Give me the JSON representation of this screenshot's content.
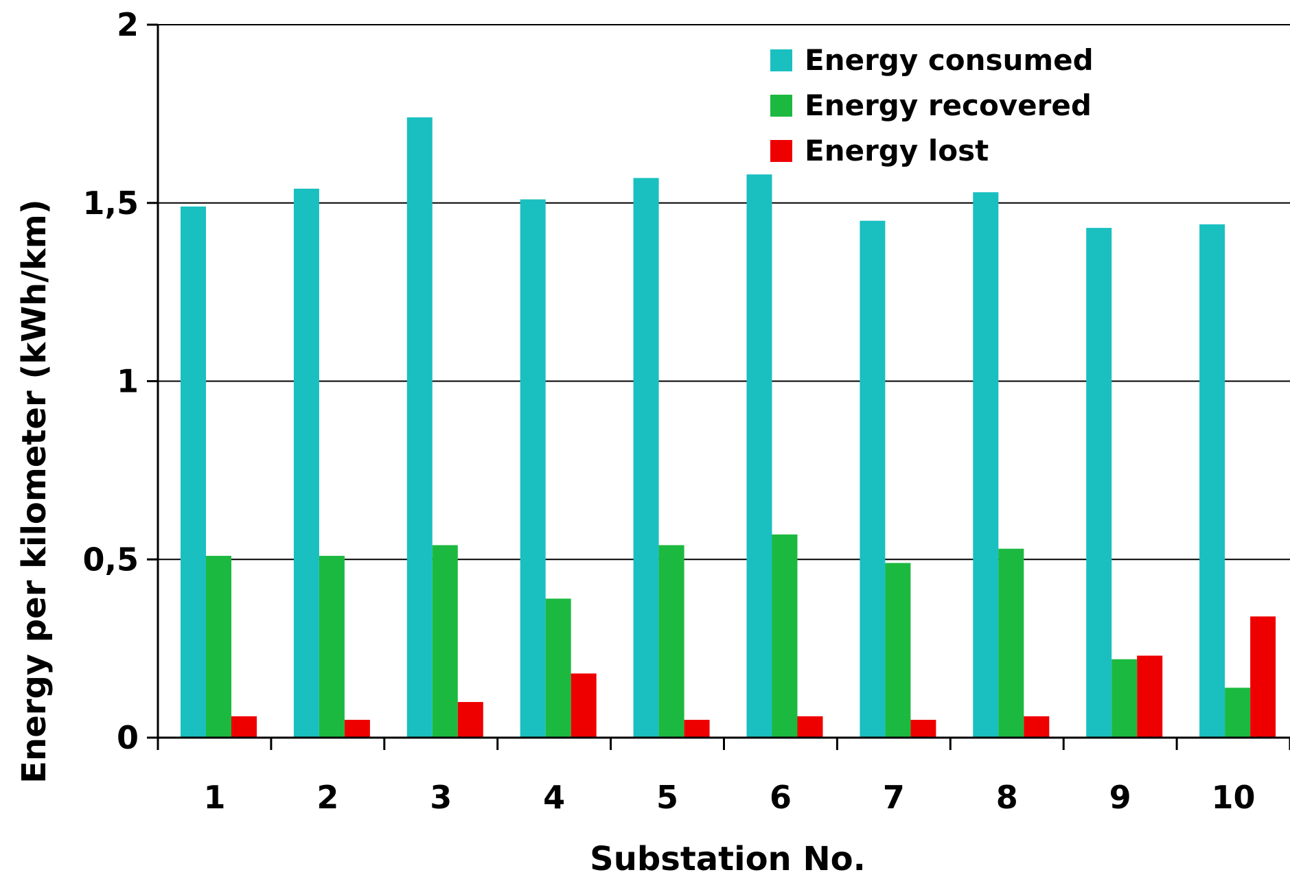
{
  "chart_data": {
    "type": "bar",
    "title": "",
    "xlabel": "Substation No.",
    "ylabel": "Energy per kilometer (kWh/km)",
    "categories": [
      "1",
      "2",
      "3",
      "4",
      "5",
      "6",
      "7",
      "8",
      "9",
      "10"
    ],
    "series": [
      {
        "name": "Energy consumed",
        "color": "#1ABFC0",
        "values": [
          1.49,
          1.54,
          1.74,
          1.51,
          1.57,
          1.58,
          1.45,
          1.53,
          1.43,
          1.44
        ]
      },
      {
        "name": "Energy recovered",
        "color": "#1CB940",
        "values": [
          0.51,
          0.51,
          0.54,
          0.39,
          0.54,
          0.57,
          0.49,
          0.53,
          0.22,
          0.14
        ]
      },
      {
        "name": "Energy lost",
        "color": "#EE0000",
        "values": [
          0.06,
          0.05,
          0.1,
          0.18,
          0.05,
          0.06,
          0.05,
          0.06,
          0.23,
          0.34
        ]
      }
    ],
    "ylim": [
      0,
      2
    ],
    "yticks": [
      0,
      0.5,
      1,
      1.5,
      2
    ],
    "ytick_labels": [
      "0",
      "0,5",
      "1",
      "1,5",
      "2"
    ],
    "grid": "horizontal",
    "legend_position": "top-right"
  }
}
